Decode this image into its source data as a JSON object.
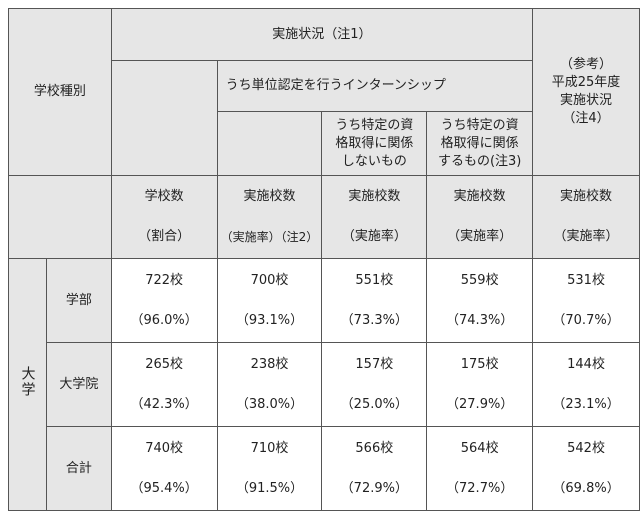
{
  "header": {
    "school_type": "学校種別",
    "status": "実施状況（注1）",
    "credit_internship": "うち単位認定を行うインターンシップ",
    "not_related": [
      "うち特定の資",
      "格取得に関係",
      "しないもの"
    ],
    "related": [
      "うち特定の資",
      "格取得に関係",
      "するもの(注3)"
    ],
    "reference": [
      "（参考）",
      "平成25年度",
      "実施状況",
      "（注4）"
    ]
  },
  "subheader": [
    {
      "top": "学校数",
      "bottom": "（割合）"
    },
    {
      "top": "実施校数",
      "bottom": "（実施率）（注2）"
    },
    {
      "top": "実施校数",
      "bottom": "（実施率）"
    },
    {
      "top": "実施校数",
      "bottom": "（実施率）"
    },
    {
      "top": "実施校数",
      "bottom": "（実施率）"
    }
  ],
  "group_label": "大学",
  "rows": [
    {
      "label": "学部",
      "cells": [
        [
          "722校",
          "（96.0%）"
        ],
        [
          "700校",
          "（93.1%）"
        ],
        [
          "551校",
          "（73.3%）"
        ],
        [
          "559校",
          "（74.3%）"
        ],
        [
          "531校",
          "（70.7%）"
        ]
      ]
    },
    {
      "label": "大学院",
      "cells": [
        [
          "265校",
          "（42.3%）"
        ],
        [
          "238校",
          "（38.0%）"
        ],
        [
          "157校",
          "（25.0%）"
        ],
        [
          "175校",
          "（27.9%）"
        ],
        [
          "144校",
          "（23.1%）"
        ]
      ]
    },
    {
      "label": "合計",
      "cells": [
        [
          "740校",
          "（95.4%）"
        ],
        [
          "710校",
          "（91.5%）"
        ],
        [
          "566校",
          "（72.9%）"
        ],
        [
          "564校",
          "（72.7%）"
        ],
        [
          "542校",
          "（69.8%）"
        ]
      ]
    }
  ]
}
